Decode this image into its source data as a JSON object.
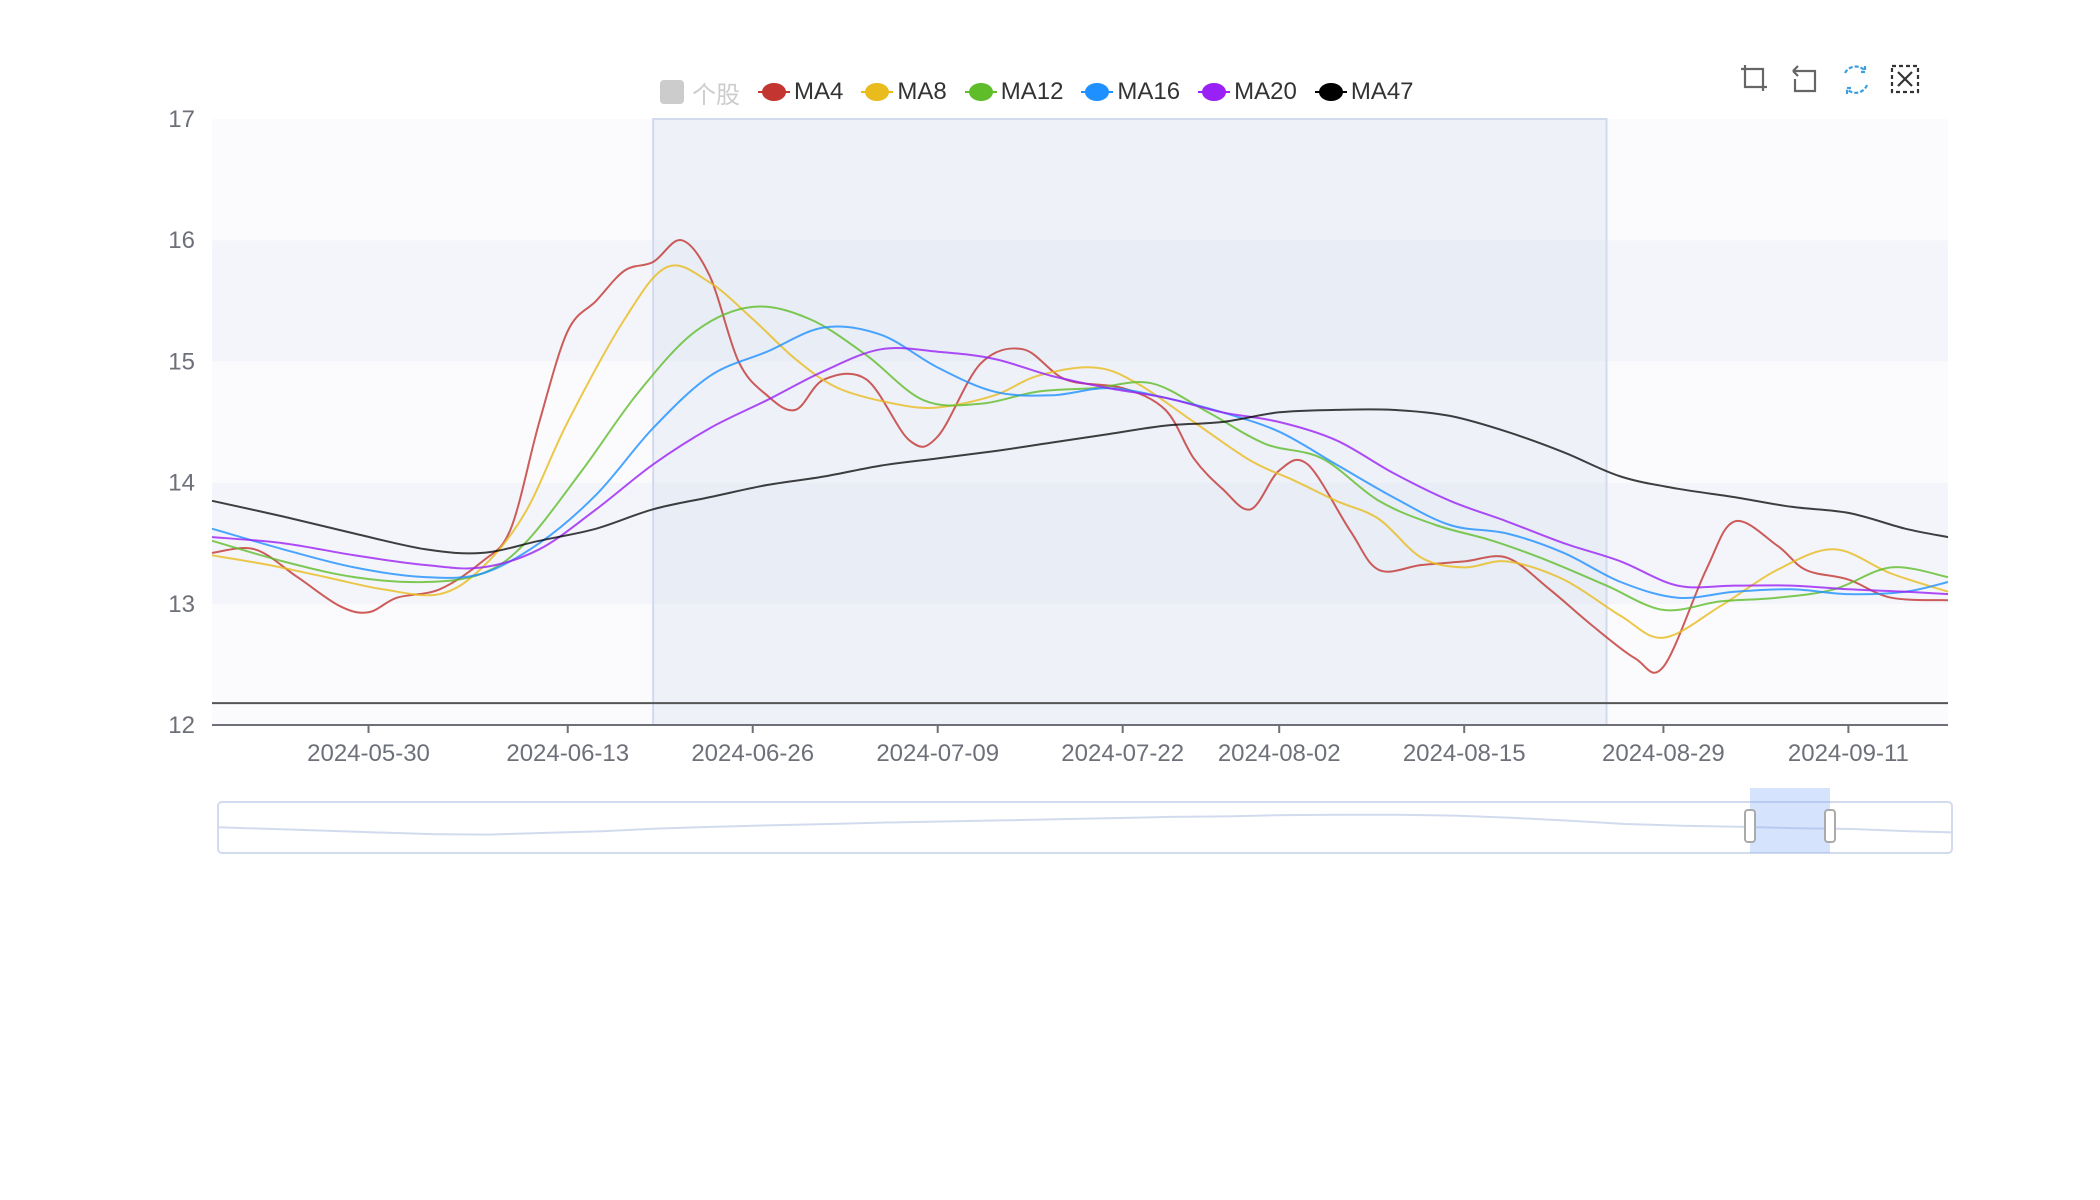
{
  "legend": [
    {
      "label": "个股",
      "color": "#cccccc",
      "shape": "square",
      "disabled": true
    },
    {
      "label": "MA4",
      "color": "#c23531",
      "shape": "dot",
      "disabled": false
    },
    {
      "label": "MA8",
      "color": "#e9bb1d",
      "shape": "dot",
      "disabled": false
    },
    {
      "label": "MA12",
      "color": "#5fbd2a",
      "shape": "dot",
      "disabled": false
    },
    {
      "label": "MA16",
      "color": "#1e90ff",
      "shape": "dot",
      "disabled": false
    },
    {
      "label": "MA20",
      "color": "#9a21f5",
      "shape": "dot",
      "disabled": false
    },
    {
      "label": "MA47",
      "color": "#000000",
      "shape": "dot",
      "disabled": false
    }
  ],
  "toolbox": [
    {
      "name": "zoom-icon",
      "color": "#666666"
    },
    {
      "name": "zoom-back-icon",
      "color": "#666666"
    },
    {
      "name": "restore-icon",
      "color": "#3ca0e0"
    },
    {
      "name": "clear-selection-icon",
      "color": "#333333"
    }
  ],
  "chart_data": {
    "type": "line",
    "title": "",
    "xlabel": "",
    "ylabel": "",
    "ylim": [
      12,
      17
    ],
    "yticks": [
      "12",
      "13",
      "14",
      "15",
      "16",
      "17"
    ],
    "xticks": [
      "2024-05-30",
      "2024-06-13",
      "2024-06-26",
      "2024-07-09",
      "2024-07-22",
      "2024-08-02",
      "2024-08-15",
      "2024-08-29",
      "2024-09-11"
    ],
    "x_range": [
      "2024-05-19",
      "2024-09-18"
    ],
    "grid": "alternating horizontal bands",
    "legend_position": "top",
    "horizontal_line": 12.18,
    "brush_selection": [
      "2024-06-19",
      "2024-08-25"
    ],
    "series": [
      {
        "name": "MA4",
        "color": "#c23531",
        "points": [
          [
            "2024-05-19",
            13.42
          ],
          [
            "2024-05-22",
            13.45
          ],
          [
            "2024-05-25",
            13.22
          ],
          [
            "2024-05-28",
            12.98
          ],
          [
            "2024-05-30",
            12.93
          ],
          [
            "2024-06-01",
            13.05
          ],
          [
            "2024-06-04",
            13.12
          ],
          [
            "2024-06-07",
            13.35
          ],
          [
            "2024-06-09",
            13.62
          ],
          [
            "2024-06-11",
            14.5
          ],
          [
            "2024-06-13",
            15.25
          ],
          [
            "2024-06-15",
            15.5
          ],
          [
            "2024-06-17",
            15.75
          ],
          [
            "2024-06-19",
            15.82
          ],
          [
            "2024-06-21",
            16.0
          ],
          [
            "2024-06-23",
            15.7
          ],
          [
            "2024-06-25",
            15.0
          ],
          [
            "2024-06-27",
            14.72
          ],
          [
            "2024-06-29",
            14.6
          ],
          [
            "2024-07-01",
            14.85
          ],
          [
            "2024-07-04",
            14.85
          ],
          [
            "2024-07-07",
            14.35
          ],
          [
            "2024-07-09",
            14.38
          ],
          [
            "2024-07-12",
            14.98
          ],
          [
            "2024-07-15",
            15.1
          ],
          [
            "2024-07-18",
            14.85
          ],
          [
            "2024-07-22",
            14.78
          ],
          [
            "2024-07-25",
            14.6
          ],
          [
            "2024-07-27",
            14.2
          ],
          [
            "2024-07-29",
            13.95
          ],
          [
            "2024-07-31",
            13.78
          ],
          [
            "2024-08-02",
            14.1
          ],
          [
            "2024-08-04",
            14.15
          ],
          [
            "2024-08-07",
            13.6
          ],
          [
            "2024-08-09",
            13.28
          ],
          [
            "2024-08-12",
            13.32
          ],
          [
            "2024-08-15",
            13.35
          ],
          [
            "2024-08-18",
            13.38
          ],
          [
            "2024-08-21",
            13.12
          ],
          [
            "2024-08-24",
            12.82
          ],
          [
            "2024-08-27",
            12.55
          ],
          [
            "2024-08-29",
            12.48
          ],
          [
            "2024-09-01",
            13.28
          ],
          [
            "2024-09-03",
            13.68
          ],
          [
            "2024-09-06",
            13.48
          ],
          [
            "2024-09-08",
            13.28
          ],
          [
            "2024-09-11",
            13.2
          ],
          [
            "2024-09-14",
            13.05
          ],
          [
            "2024-09-18",
            13.03
          ]
        ]
      },
      {
        "name": "MA8",
        "color": "#e9bb1d",
        "points": [
          [
            "2024-05-19",
            13.4
          ],
          [
            "2024-05-23",
            13.32
          ],
          [
            "2024-05-27",
            13.22
          ],
          [
            "2024-05-31",
            13.12
          ],
          [
            "2024-06-04",
            13.08
          ],
          [
            "2024-06-07",
            13.3
          ],
          [
            "2024-06-10",
            13.75
          ],
          [
            "2024-06-13",
            14.5
          ],
          [
            "2024-06-17",
            15.35
          ],
          [
            "2024-06-20",
            15.78
          ],
          [
            "2024-06-23",
            15.65
          ],
          [
            "2024-06-26",
            15.35
          ],
          [
            "2024-06-29",
            15.02
          ],
          [
            "2024-07-02",
            14.78
          ],
          [
            "2024-07-06",
            14.65
          ],
          [
            "2024-07-09",
            14.62
          ],
          [
            "2024-07-13",
            14.72
          ],
          [
            "2024-07-16",
            14.88
          ],
          [
            "2024-07-20",
            14.95
          ],
          [
            "2024-07-23",
            14.82
          ],
          [
            "2024-07-27",
            14.5
          ],
          [
            "2024-07-31",
            14.18
          ],
          [
            "2024-08-03",
            14.02
          ],
          [
            "2024-08-06",
            13.85
          ],
          [
            "2024-08-09",
            13.7
          ],
          [
            "2024-08-12",
            13.38
          ],
          [
            "2024-08-15",
            13.3
          ],
          [
            "2024-08-18",
            13.35
          ],
          [
            "2024-08-22",
            13.2
          ],
          [
            "2024-08-26",
            12.9
          ],
          [
            "2024-08-29",
            12.72
          ],
          [
            "2024-09-02",
            12.98
          ],
          [
            "2024-09-06",
            13.28
          ],
          [
            "2024-09-10",
            13.45
          ],
          [
            "2024-09-14",
            13.25
          ],
          [
            "2024-09-18",
            13.1
          ]
        ]
      },
      {
        "name": "MA12",
        "color": "#5fbd2a",
        "points": [
          [
            "2024-05-19",
            13.52
          ],
          [
            "2024-05-24",
            13.35
          ],
          [
            "2024-05-29",
            13.22
          ],
          [
            "2024-06-03",
            13.18
          ],
          [
            "2024-06-07",
            13.25
          ],
          [
            "2024-06-10",
            13.5
          ],
          [
            "2024-06-14",
            14.1
          ],
          [
            "2024-06-18",
            14.75
          ],
          [
            "2024-06-22",
            15.25
          ],
          [
            "2024-06-26",
            15.45
          ],
          [
            "2024-06-30",
            15.35
          ],
          [
            "2024-07-04",
            15.05
          ],
          [
            "2024-07-08",
            14.68
          ],
          [
            "2024-07-12",
            14.65
          ],
          [
            "2024-07-16",
            14.75
          ],
          [
            "2024-07-20",
            14.78
          ],
          [
            "2024-07-24",
            14.82
          ],
          [
            "2024-07-28",
            14.58
          ],
          [
            "2024-08-01",
            14.32
          ],
          [
            "2024-08-05",
            14.2
          ],
          [
            "2024-08-09",
            13.85
          ],
          [
            "2024-08-13",
            13.65
          ],
          [
            "2024-08-17",
            13.52
          ],
          [
            "2024-08-21",
            13.35
          ],
          [
            "2024-08-25",
            13.15
          ],
          [
            "2024-08-29",
            12.95
          ],
          [
            "2024-09-02",
            13.02
          ],
          [
            "2024-09-06",
            13.05
          ],
          [
            "2024-09-10",
            13.12
          ],
          [
            "2024-09-14",
            13.3
          ],
          [
            "2024-09-18",
            13.22
          ]
        ]
      },
      {
        "name": "MA16",
        "color": "#1e90ff",
        "points": [
          [
            "2024-05-19",
            13.62
          ],
          [
            "2024-05-24",
            13.45
          ],
          [
            "2024-05-29",
            13.3
          ],
          [
            "2024-06-03",
            13.22
          ],
          [
            "2024-06-07",
            13.25
          ],
          [
            "2024-06-11",
            13.5
          ],
          [
            "2024-06-15",
            13.9
          ],
          [
            "2024-06-19",
            14.45
          ],
          [
            "2024-06-23",
            14.88
          ],
          [
            "2024-06-27",
            15.08
          ],
          [
            "2024-07-01",
            15.28
          ],
          [
            "2024-07-05",
            15.22
          ],
          [
            "2024-07-09",
            14.95
          ],
          [
            "2024-07-13",
            14.75
          ],
          [
            "2024-07-17",
            14.72
          ],
          [
            "2024-07-21",
            14.78
          ],
          [
            "2024-07-25",
            14.7
          ],
          [
            "2024-07-29",
            14.58
          ],
          [
            "2024-08-02",
            14.42
          ],
          [
            "2024-08-06",
            14.15
          ],
          [
            "2024-08-10",
            13.88
          ],
          [
            "2024-08-14",
            13.65
          ],
          [
            "2024-08-18",
            13.58
          ],
          [
            "2024-08-22",
            13.42
          ],
          [
            "2024-08-26",
            13.18
          ],
          [
            "2024-08-30",
            13.05
          ],
          [
            "2024-09-03",
            13.1
          ],
          [
            "2024-09-07",
            13.12
          ],
          [
            "2024-09-11",
            13.08
          ],
          [
            "2024-09-15",
            13.1
          ],
          [
            "2024-09-18",
            13.18
          ]
        ]
      },
      {
        "name": "MA20",
        "color": "#9a21f5",
        "points": [
          [
            "2024-05-19",
            13.55
          ],
          [
            "2024-05-24",
            13.5
          ],
          [
            "2024-05-29",
            13.4
          ],
          [
            "2024-06-03",
            13.32
          ],
          [
            "2024-06-07",
            13.3
          ],
          [
            "2024-06-11",
            13.45
          ],
          [
            "2024-06-15",
            13.78
          ],
          [
            "2024-06-19",
            14.15
          ],
          [
            "2024-06-23",
            14.45
          ],
          [
            "2024-06-27",
            14.68
          ],
          [
            "2024-07-01",
            14.92
          ],
          [
            "2024-07-05",
            15.1
          ],
          [
            "2024-07-09",
            15.08
          ],
          [
            "2024-07-13",
            15.02
          ],
          [
            "2024-07-17",
            14.88
          ],
          [
            "2024-07-21",
            14.78
          ],
          [
            "2024-07-25",
            14.7
          ],
          [
            "2024-07-29",
            14.58
          ],
          [
            "2024-08-02",
            14.5
          ],
          [
            "2024-08-06",
            14.35
          ],
          [
            "2024-08-10",
            14.08
          ],
          [
            "2024-08-14",
            13.85
          ],
          [
            "2024-08-18",
            13.68
          ],
          [
            "2024-08-22",
            13.5
          ],
          [
            "2024-08-26",
            13.35
          ],
          [
            "2024-08-30",
            13.15
          ],
          [
            "2024-09-03",
            13.15
          ],
          [
            "2024-09-07",
            13.15
          ],
          [
            "2024-09-11",
            13.12
          ],
          [
            "2024-09-15",
            13.1
          ],
          [
            "2024-09-18",
            13.08
          ]
        ]
      },
      {
        "name": "MA47",
        "color": "#000000",
        "points": [
          [
            "2024-05-19",
            13.85
          ],
          [
            "2024-05-24",
            13.72
          ],
          [
            "2024-05-29",
            13.58
          ],
          [
            "2024-06-03",
            13.45
          ],
          [
            "2024-06-07",
            13.42
          ],
          [
            "2024-06-11",
            13.52
          ],
          [
            "2024-06-15",
            13.62
          ],
          [
            "2024-06-19",
            13.78
          ],
          [
            "2024-06-23",
            13.88
          ],
          [
            "2024-06-27",
            13.98
          ],
          [
            "2024-07-01",
            14.05
          ],
          [
            "2024-07-05",
            14.14
          ],
          [
            "2024-07-09",
            14.2
          ],
          [
            "2024-07-13",
            14.26
          ],
          [
            "2024-07-17",
            14.33
          ],
          [
            "2024-07-21",
            14.4
          ],
          [
            "2024-07-25",
            14.47
          ],
          [
            "2024-07-29",
            14.5
          ],
          [
            "2024-08-02",
            14.58
          ],
          [
            "2024-08-06",
            14.6
          ],
          [
            "2024-08-10",
            14.6
          ],
          [
            "2024-08-14",
            14.55
          ],
          [
            "2024-08-18",
            14.42
          ],
          [
            "2024-08-22",
            14.25
          ],
          [
            "2024-08-26",
            14.05
          ],
          [
            "2024-08-30",
            13.95
          ],
          [
            "2024-09-03",
            13.88
          ],
          [
            "2024-09-07",
            13.8
          ],
          [
            "2024-09-11",
            13.75
          ],
          [
            "2024-09-15",
            13.62
          ],
          [
            "2024-09-18",
            13.55
          ]
        ]
      }
    ]
  }
}
